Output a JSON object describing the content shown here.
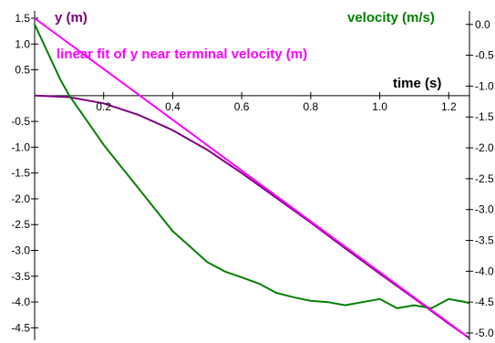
{
  "chart_data": {
    "type": "line",
    "x_label": "time (s)",
    "x_ticks": [
      0.2,
      0.4,
      0.6,
      0.8,
      1.0,
      1.2
    ],
    "left_axis": {
      "label": "y (m)",
      "range": [
        -4.6,
        1.5
      ],
      "ticks": [
        1.5,
        1.0,
        0.5,
        -0.5,
        -1.0,
        -1.5,
        -2.0,
        -2.5,
        -3.0,
        -3.5,
        -4.0,
        -4.5
      ],
      "tick_labels": [
        "1.5",
        "1.0",
        "0.5",
        "-0.5",
        "-1.0",
        "-1.5",
        "-2.0",
        "-2.5",
        "-3.0",
        "-3.5",
        "-4.0",
        "-4.5"
      ]
    },
    "right_axis": {
      "label": "velocity (m/s)",
      "range": [
        -5.0,
        0.1
      ],
      "ticks": [
        0.0,
        -0.5,
        -1.0,
        -1.5,
        -2.0,
        -2.5,
        -3.0,
        -3.5,
        -4.0,
        -4.5,
        -5.0
      ],
      "tick_labels": [
        "0.0",
        "-0.5",
        "-1.0",
        "-1.5",
        "-2.0",
        "-2.5",
        "-3.0",
        "-3.5",
        "-4.0",
        "-4.5",
        "-5.0"
      ]
    },
    "x_range": [
      0.0,
      1.26
    ],
    "grid": false,
    "series": [
      {
        "name": "y (m)",
        "axis": "left",
        "color": "#800080",
        "x": [
          0.0,
          0.1,
          0.2,
          0.3,
          0.4,
          0.5,
          0.6,
          0.7,
          0.8,
          0.9,
          1.0,
          1.1,
          1.2,
          1.26
        ],
        "y": [
          0.0,
          -0.03,
          -0.15,
          -0.37,
          -0.67,
          -1.05,
          -1.5,
          -1.98,
          -2.46,
          -2.96,
          -3.45,
          -3.93,
          -4.42,
          -4.7
        ]
      },
      {
        "name": "velocity (m/s)",
        "axis": "right",
        "color": "#008000",
        "x": [
          0.0,
          0.025,
          0.05,
          0.075,
          0.1,
          0.15,
          0.2,
          0.25,
          0.3,
          0.35,
          0.4,
          0.45,
          0.5,
          0.55,
          0.6,
          0.65,
          0.7,
          0.75,
          0.8,
          0.85,
          0.9,
          0.95,
          1.0,
          1.05,
          1.1,
          1.15,
          1.2,
          1.25,
          1.26
        ],
        "y": [
          0.0,
          -0.3,
          -0.6,
          -0.9,
          -1.15,
          -1.55,
          -1.95,
          -2.3,
          -2.65,
          -3.0,
          -3.35,
          -3.6,
          -3.85,
          -4.0,
          -4.1,
          -4.2,
          -4.35,
          -4.42,
          -4.48,
          -4.5,
          -4.55,
          -4.5,
          -4.45,
          -4.6,
          -4.55,
          -4.6,
          -4.45,
          -4.5,
          -4.52
        ]
      },
      {
        "name": "linear fit of y near terminal velocity (m)",
        "axis": "left",
        "color": "#ff00ff",
        "x": [
          0.0,
          1.25
        ],
        "y": [
          1.5,
          -4.65
        ]
      }
    ]
  }
}
